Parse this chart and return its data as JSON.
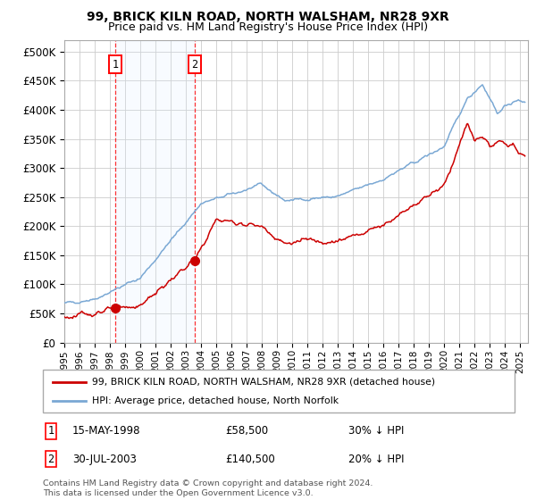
{
  "title1": "99, BRICK KILN ROAD, NORTH WALSHAM, NR28 9XR",
  "title2": "Price paid vs. HM Land Registry's House Price Index (HPI)",
  "xlim_start": 1995.0,
  "xlim_end": 2025.5,
  "ylim_min": 0,
  "ylim_max": 520000,
  "yticks": [
    0,
    50000,
    100000,
    150000,
    200000,
    250000,
    300000,
    350000,
    400000,
    450000,
    500000
  ],
  "ytick_labels": [
    "£0",
    "£50K",
    "£100K",
    "£150K",
    "£200K",
    "£250K",
    "£300K",
    "£350K",
    "£400K",
    "£450K",
    "£500K"
  ],
  "xticks": [
    1995,
    1996,
    1997,
    1998,
    1999,
    2000,
    2001,
    2002,
    2003,
    2004,
    2005,
    2006,
    2007,
    2008,
    2009,
    2010,
    2011,
    2012,
    2013,
    2014,
    2015,
    2016,
    2017,
    2018,
    2019,
    2020,
    2021,
    2022,
    2023,
    2024,
    2025
  ],
  "sale1_x": 1998.37,
  "sale1_y": 58500,
  "sale2_x": 2003.58,
  "sale2_y": 140500,
  "sale1_date": "15-MAY-1998",
  "sale1_price": "£58,500",
  "sale1_hpi": "30% ↓ HPI",
  "sale2_date": "30-JUL-2003",
  "sale2_price": "£140,500",
  "sale2_hpi": "20% ↓ HPI",
  "line_color_property": "#cc0000",
  "line_color_hpi": "#7aa8d4",
  "legend_label_property": "99, BRICK KILN ROAD, NORTH WALSHAM, NR28 9XR (detached house)",
  "legend_label_hpi": "HPI: Average price, detached house, North Norfolk",
  "footnote1": "Contains HM Land Registry data © Crown copyright and database right 2024.",
  "footnote2": "This data is licensed under the Open Government Licence v3.0.",
  "bg_color": "#ffffff",
  "grid_color": "#cccccc",
  "shade_color": "#ddeeff"
}
